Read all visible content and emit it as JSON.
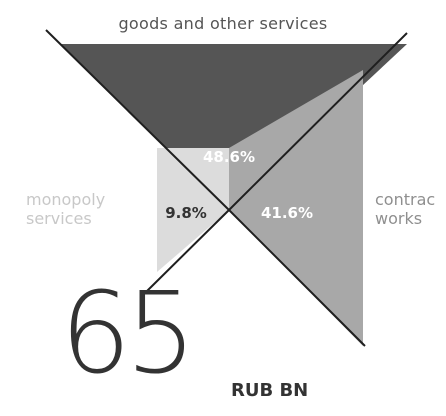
{
  "chart_data": {
    "type": "pie",
    "categories": [
      "goods and other services",
      "monopoly services",
      "contract works"
    ],
    "values": [
      48.6,
      9.8,
      41.6
    ],
    "value_labels": [
      "48.6%",
      "9.8%",
      "41.6%"
    ],
    "label_lines": [
      [
        "goods and other services"
      ],
      [
        "monopoly",
        "services"
      ],
      [
        "contrac",
        "works"
      ]
    ],
    "colors": [
      "#555555",
      "#dcdcdc",
      "#a8a8a8"
    ],
    "value_label_colors": [
      "#ffffff",
      "#333333",
      "#ffffff"
    ],
    "total": {
      "value": "65",
      "unit": "RUB BN"
    }
  }
}
